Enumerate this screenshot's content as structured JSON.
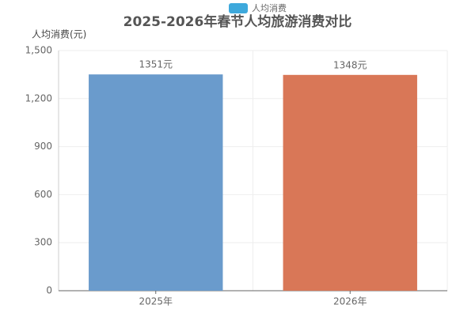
{
  "chart_data": {
    "type": "bar",
    "title": "2025-2026年春节人均旅游消费对比",
    "y_label": "人均消费(元)",
    "categories": [
      "2025年",
      "2026年"
    ],
    "series": [
      {
        "name": "人均消费",
        "color": "#3ea9dc",
        "values": [
          1351,
          1348
        ],
        "value_labels": [
          "1351元",
          "1348元"
        ]
      }
    ],
    "bar_colors": [
      "#6a9bcc",
      "#d97757"
    ],
    "ylim": [
      0,
      1500
    ],
    "yticks": [
      0,
      300,
      600,
      900,
      {
        "value": 1200,
        "label": "1,200"
      },
      {
        "value": 1500,
        "label": "1,500"
      }
    ],
    "grid": true,
    "legend": "top"
  }
}
